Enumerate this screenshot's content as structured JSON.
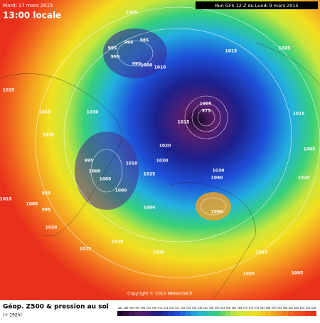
{
  "header": {
    "date": "Mardi 17 mars 2015",
    "time": "13:00 locale",
    "run": "Run GFS 12 Z du Lundi 9 mars 2015"
  },
  "footer": {
    "title": "Géop. Z500 & pression au sol",
    "lead": "(+ 192h)",
    "copyright": "Copyright © 2015 Meteociel.fr"
  },
  "pressure_labels": [
    "1005",
    "985",
    "990",
    "995",
    "995",
    "995",
    "1000",
    "1010",
    "1015",
    "1025",
    "1015",
    "1010",
    "1030",
    "1005",
    "975",
    "1015",
    "1035",
    "1020",
    "995",
    "1010",
    "1030",
    "1025",
    "1000",
    "1005",
    "1000",
    "1004",
    "1030",
    "1040",
    "1050",
    "995",
    "1000",
    "995",
    "1015",
    "1020",
    "1010",
    "1015",
    "1020",
    "1015",
    "1025",
    "1005",
    "1015",
    "1005",
    "1020"
  ],
  "colorbar_ticks": [
    482,
    486,
    490,
    494,
    498,
    502,
    506,
    510,
    514,
    518,
    522,
    526,
    530,
    534,
    538,
    542,
    546,
    550,
    554,
    558,
    562,
    566,
    570,
    574,
    578,
    582,
    586,
    590,
    594,
    598,
    602,
    606,
    610,
    614,
    618
  ]
}
